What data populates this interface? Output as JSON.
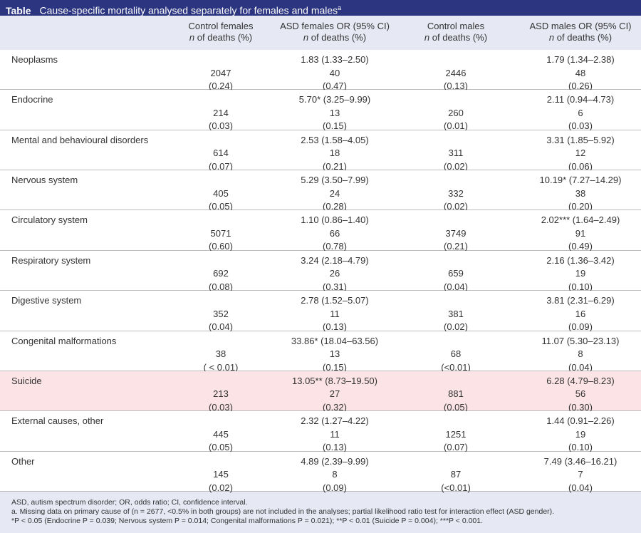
{
  "header": {
    "label": "Table",
    "title": "Cause-specific mortality analysed separately for females and males",
    "title_note": "a"
  },
  "columns": [
    {
      "name": "Control females",
      "sub": "n of deaths (%)"
    },
    {
      "name": "ASD females OR (95% CI)",
      "sub": "n of deaths (%)"
    },
    {
      "name": "Control males",
      "sub": "n of deaths (%)"
    },
    {
      "name": "ASD males OR (95% CI)",
      "sub": "n of deaths (%)"
    }
  ],
  "rows": [
    {
      "label": "Neoplasms",
      "cells": [
        [
          null,
          2047,
          "(0.24)"
        ],
        [
          "1.83 (1.33–2.50)",
          40,
          "(0.47)"
        ],
        [
          null,
          2446,
          "(0.13)"
        ],
        [
          "1.79 (1.34–2.38)",
          48,
          "(0.26)"
        ]
      ]
    },
    {
      "label": "Endocrine",
      "cells": [
        [
          null,
          214,
          "(0.03)"
        ],
        [
          "5.70* (3.25–9.99)",
          13,
          "(0.15)"
        ],
        [
          null,
          260,
          "(0.01)"
        ],
        [
          "2.11 (0.94–4.73)",
          6,
          "(0.03)"
        ]
      ]
    },
    {
      "label": "Mental and behavioural disorders",
      "cells": [
        [
          null,
          614,
          "(0.07)"
        ],
        [
          "2.53 (1.58–4.05)",
          18,
          "(0.21)"
        ],
        [
          null,
          311,
          "(0.02)"
        ],
        [
          "3.31 (1.85–5.92)",
          12,
          "(0.06)"
        ]
      ]
    },
    {
      "label": "Nervous system",
      "cells": [
        [
          null,
          405,
          "(0.05)"
        ],
        [
          "5.29 (3.50–7.99)",
          24,
          "(0.28)"
        ],
        [
          null,
          332,
          "(0.02)"
        ],
        [
          "10.19* (7.27–14.29)",
          38,
          "(0.20)"
        ]
      ]
    },
    {
      "label": "Circulatory system",
      "cells": [
        [
          null,
          5071,
          "(0.60)"
        ],
        [
          "1.10 (0.86–1.40)",
          66,
          "(0.78)"
        ],
        [
          null,
          3749,
          "(0.21)"
        ],
        [
          "2.02*** (1.64–2.49)",
          91,
          "(0.49)"
        ]
      ]
    },
    {
      "label": "Respiratory system",
      "cells": [
        [
          null,
          692,
          "(0.08)"
        ],
        [
          "3.24 (2.18–4.79)",
          26,
          "(0.31)"
        ],
        [
          null,
          659,
          "(0.04)"
        ],
        [
          "2.16 (1.36–3.42)",
          19,
          "(0.10)"
        ]
      ]
    },
    {
      "label": "Digestive system",
      "cells": [
        [
          null,
          352,
          "(0.04)"
        ],
        [
          "2.78 (1.52–5.07)",
          11,
          "(0.13)"
        ],
        [
          null,
          381,
          "(0.02)"
        ],
        [
          "3.81 (2.31–6.29)",
          16,
          "(0.09)"
        ]
      ]
    },
    {
      "label": "Congenital malformations",
      "cells": [
        [
          null,
          38,
          "( < 0.01)"
        ],
        [
          "33.86* (18.04–63.56)",
          13,
          "(0.15)"
        ],
        [
          null,
          68,
          "(<0.01)"
        ],
        [
          "11.07 (5.30–23.13)",
          8,
          "(0.04)"
        ]
      ]
    },
    {
      "label": "Suicide",
      "highlight": true,
      "cells": [
        [
          null,
          213,
          "(0.03)"
        ],
        [
          "13.05** (8.73–19.50)",
          27,
          "(0.32)"
        ],
        [
          null,
          881,
          "(0.05)"
        ],
        [
          "6.28 (4.79–8.23)",
          56,
          "(0.30)"
        ]
      ]
    },
    {
      "label": "External causes, other",
      "cells": [
        [
          null,
          445,
          "(0.05)"
        ],
        [
          "2.32 (1.27–4.22)",
          11,
          "(0.13)"
        ],
        [
          null,
          1251,
          "(0.07)"
        ],
        [
          "1.44 (0.91–2.26)",
          19,
          "(0.10)"
        ]
      ]
    },
    {
      "label": "Other",
      "cells": [
        [
          null,
          145,
          "(0.02)"
        ],
        [
          "4.89 (2.39–9.99)",
          8,
          "(0.09)"
        ],
        [
          null,
          87,
          "(<0.01)"
        ],
        [
          "7.49 (3.46–16.21)",
          7,
          "(0.04)"
        ]
      ]
    }
  ],
  "footnotes": [
    "ASD, autism spectrum disorder; OR, odds ratio; CI, confidence interval.",
    "a. Missing data on primary cause of (n = 2677, <0.5% in both groups) are not included in the analyses; partial likelihood ratio test for interaction effect (ASD gender).",
    "*P < 0.05 (Endocrine P = 0.039; Nervous system P = 0.014; Congenital malformations P = 0.021); **P < 0.01 (Suicide P = 0.004); ***P < 0.001."
  ]
}
